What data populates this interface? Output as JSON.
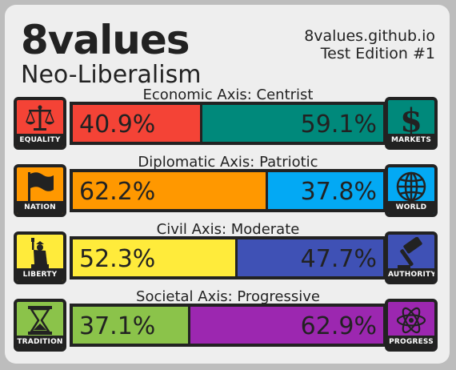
{
  "header": {
    "title": "8values",
    "ideology": "Neo-Liberalism",
    "site": "8values.github.io",
    "edition": "Test Edition #1"
  },
  "axes": [
    {
      "label": "Economic Axis: Centrist",
      "left": {
        "name": "EQUALITY",
        "pct_text": "40.9%",
        "value": 40.9,
        "color": "#f44336",
        "icon": "scales-icon"
      },
      "right": {
        "name": "MARKETS",
        "pct_text": "59.1%",
        "value": 59.1,
        "color": "#00897b",
        "icon": "dollar-icon"
      }
    },
    {
      "label": "Diplomatic Axis: Patriotic",
      "left": {
        "name": "NATION",
        "pct_text": "62.2%",
        "value": 62.2,
        "color": "#ff9800",
        "icon": "flag-icon"
      },
      "right": {
        "name": "WORLD",
        "pct_text": "37.8%",
        "value": 37.8,
        "color": "#03a9f4",
        "icon": "globe-icon"
      }
    },
    {
      "label": "Civil Axis: Moderate",
      "left": {
        "name": "LIBERTY",
        "pct_text": "52.3%",
        "value": 52.3,
        "color": "#ffeb3b",
        "icon": "statue-of-liberty-icon"
      },
      "right": {
        "name": "AUTHORITY",
        "pct_text": "47.7%",
        "value": 47.7,
        "color": "#3f51b5",
        "icon": "gavel-icon"
      }
    },
    {
      "label": "Societal Axis: Progressive",
      "left": {
        "name": "TRADITION",
        "pct_text": "37.1%",
        "value": 37.1,
        "color": "#8bc34a",
        "icon": "hourglass-icon"
      },
      "right": {
        "name": "PROGRESS",
        "pct_text": "62.9%",
        "value": 62.9,
        "color": "#9c27b0",
        "icon": "atom-icon"
      }
    }
  ]
}
